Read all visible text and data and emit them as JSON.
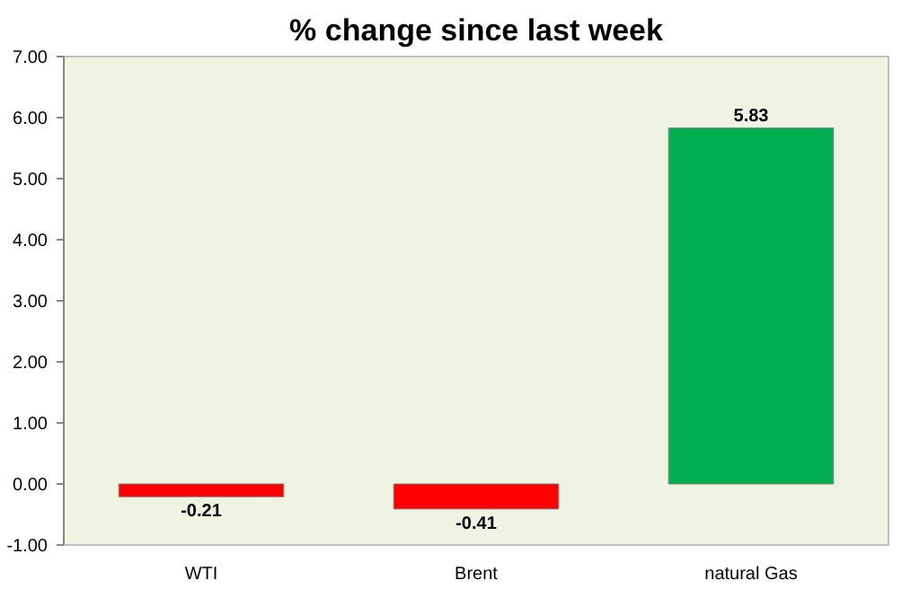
{
  "chart_data": {
    "type": "bar",
    "title": "% change since last week",
    "categories": [
      "WTI",
      "Brent",
      "natural Gas"
    ],
    "values": [
      -0.21,
      -0.41,
      5.83
    ],
    "colors": [
      "#ff0000",
      "#ff0000",
      "#00b050"
    ],
    "ylim": [
      -1,
      7
    ],
    "yticks": [
      {
        "value": -1,
        "label": "-1.00"
      },
      {
        "value": 0,
        "label": "0.00"
      },
      {
        "value": 1,
        "label": "1.00"
      },
      {
        "value": 2,
        "label": "2.00"
      },
      {
        "value": 3,
        "label": "3.00"
      },
      {
        "value": 4,
        "label": "4.00"
      },
      {
        "value": 5,
        "label": "5.00"
      },
      {
        "value": 6,
        "label": "6.00"
      },
      {
        "value": 7,
        "label": "7.00"
      }
    ],
    "value_labels": [
      "-0.21",
      "-0.41",
      "5.83"
    ],
    "grid": false
  }
}
